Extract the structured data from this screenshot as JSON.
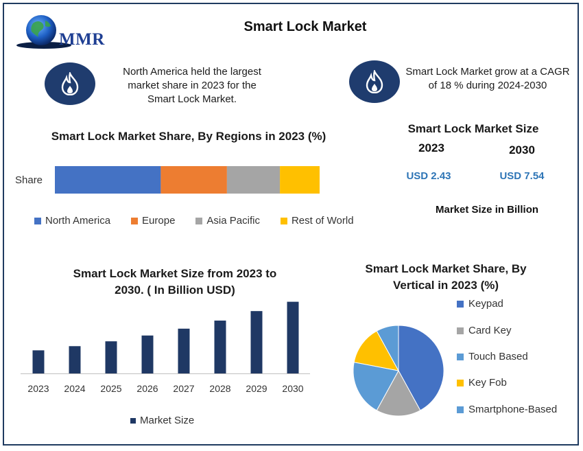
{
  "header": {
    "logo_text": "MMR",
    "title": "Smart Lock Market"
  },
  "facts": [
    {
      "text_lines": [
        "North America held the largest",
        "market share in 2023 for the",
        "Smart Lock Market."
      ],
      "icon": "flame-icon"
    },
    {
      "text_lines": [
        "Smart Lock Market grow at a CAGR",
        "of 18 % during 2024-2030"
      ],
      "icon": "flame-icon"
    }
  ],
  "market_size": {
    "title": "Smart Lock Market Size",
    "year_a": "2023",
    "year_b": "2030",
    "value_a": "USD 2.43",
    "value_b": "USD 7.54",
    "footer": "Market Size in Billion"
  },
  "chart_data": [
    {
      "type": "bar",
      "orientation": "horizontal-stacked",
      "title": "Smart Lock Market Share, By Regions in 2023 (%)",
      "categories": [
        "Share"
      ],
      "series": [
        {
          "name": "North America",
          "values": [
            40
          ],
          "color": "#4472c4"
        },
        {
          "name": "Europe",
          "values": [
            25
          ],
          "color": "#ed7d31"
        },
        {
          "name": "Asia Pacific",
          "values": [
            20
          ],
          "color": "#a5a5a5"
        },
        {
          "name": "Rest of World",
          "values": [
            15
          ],
          "color": "#ffc000"
        }
      ],
      "xlim": [
        0,
        100
      ],
      "legend": "bottom"
    },
    {
      "type": "bar",
      "title_lines": [
        "Smart Lock Market Size from 2023 to",
        "2030. ( In Billion  USD)"
      ],
      "categories": [
        "2023",
        "2024",
        "2025",
        "2026",
        "2027",
        "2028",
        "2029",
        "2030"
      ],
      "series": [
        {
          "name": "Market Size",
          "values": [
            2.43,
            2.87,
            3.38,
            3.99,
            4.71,
            5.56,
            6.56,
            7.54
          ],
          "color": "#1f3864"
        }
      ],
      "ylim": [
        0,
        7.8
      ],
      "legend": "bottom"
    },
    {
      "type": "pie",
      "title_lines": [
        "Smart Lock Market Share, By",
        "Vertical in 2023 (%)"
      ],
      "slices": [
        {
          "name": "Keypad",
          "value": 42,
          "color": "#4472c4"
        },
        {
          "name": "Card Key",
          "value": 16,
          "color": "#a5a5a5"
        },
        {
          "name": "Touch Based",
          "value": 20,
          "color": "#5b9bd5"
        },
        {
          "name": "Key Fob",
          "value": 14,
          "color": "#ffc000"
        },
        {
          "name": "Smartphone-Based",
          "value": 8,
          "color": "#5b9bd5"
        }
      ],
      "legend": "right"
    }
  ]
}
